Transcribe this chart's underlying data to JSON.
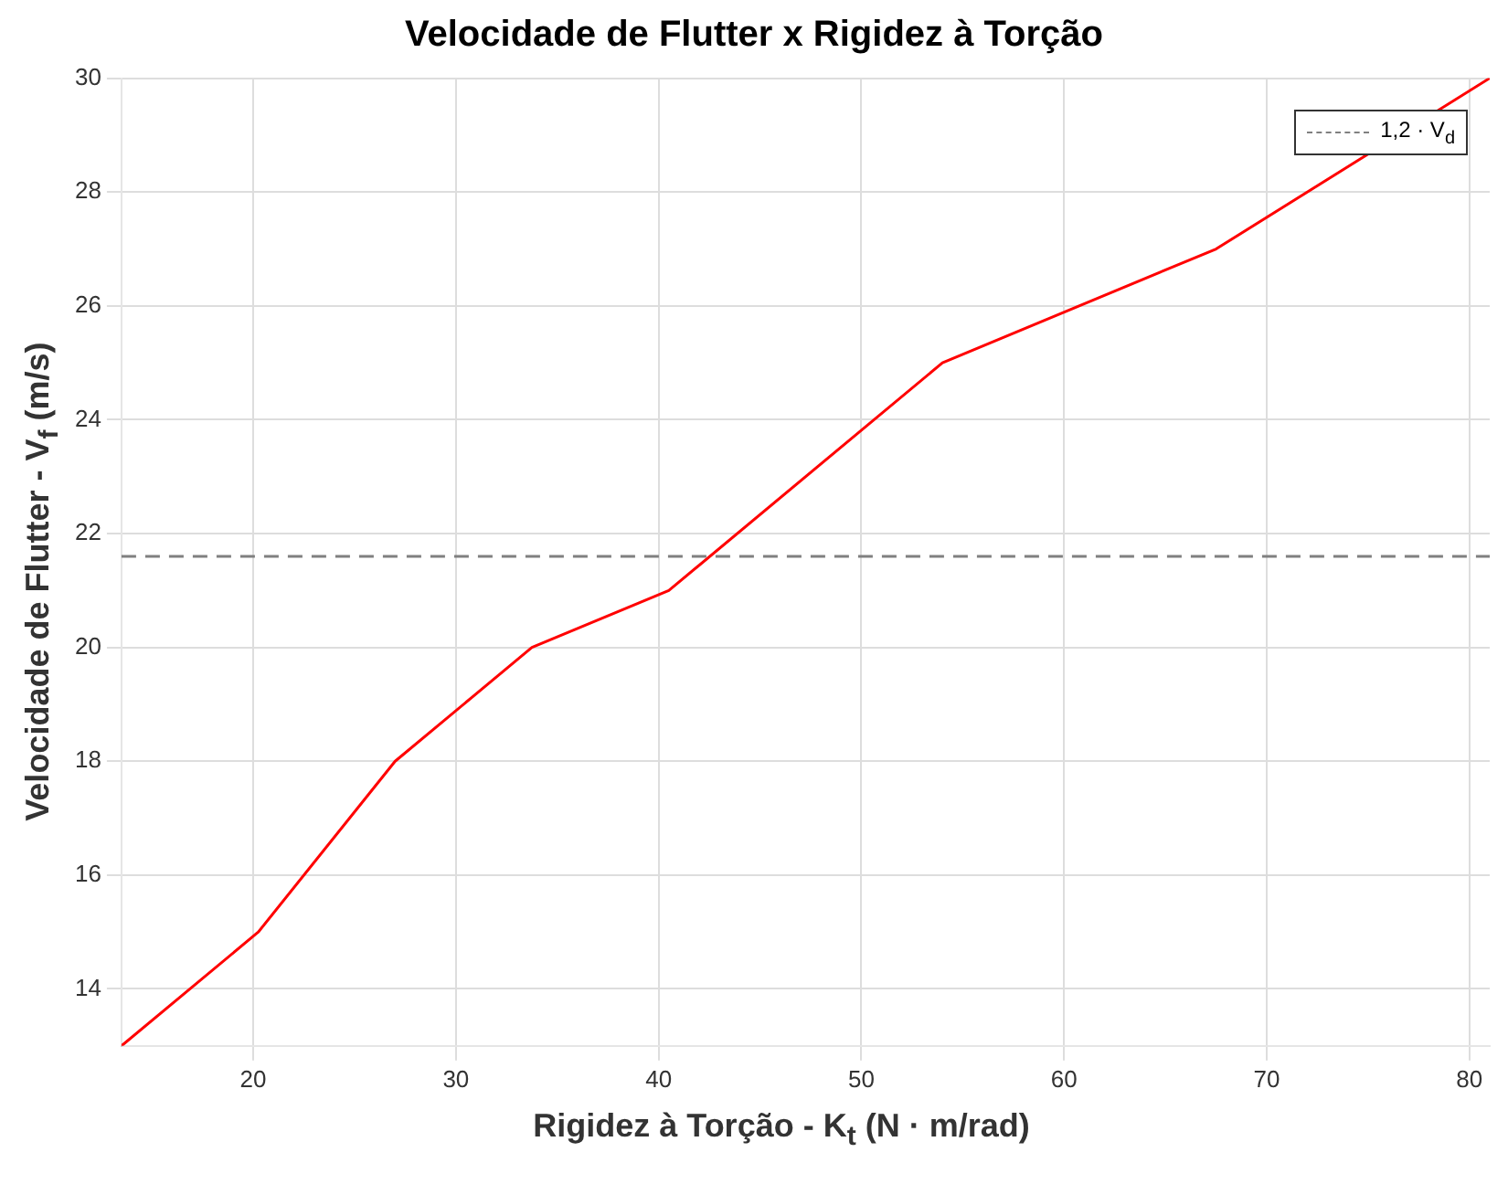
{
  "chart_data": {
    "type": "line",
    "title": "Velocidade de Flutter x Rigidez à Torção",
    "xlabel": "Rigidez à Torção - K$_{t}$ (N · m/rad)",
    "ylabel": "Velocidade de Flutter - V$_{f}$ (m/s)",
    "x": [
      13.5,
      20.25,
      27,
      33.75,
      40.5,
      54,
      67.5,
      81
    ],
    "series": [
      {
        "color": "#ff0000",
        "values": [
          13,
          15,
          18,
          20,
          21,
          25,
          27,
          30
        ]
      }
    ],
    "xlim": [
      13.5,
      81
    ],
    "xticks": [
      20,
      30,
      40,
      50,
      60,
      70,
      80
    ],
    "ylim": [
      13,
      30
    ],
    "yticks": [
      14,
      16,
      18,
      20,
      22,
      24,
      26,
      28,
      30
    ],
    "ref_lines": [
      {
        "axis": "y",
        "value": 21.6,
        "label": "1,2 · V$_{d}$",
        "color": "#808080",
        "line_style": "dashed"
      }
    ],
    "grid": true,
    "legend": "top right",
    "marker": "none",
    "line_style": "solid"
  }
}
